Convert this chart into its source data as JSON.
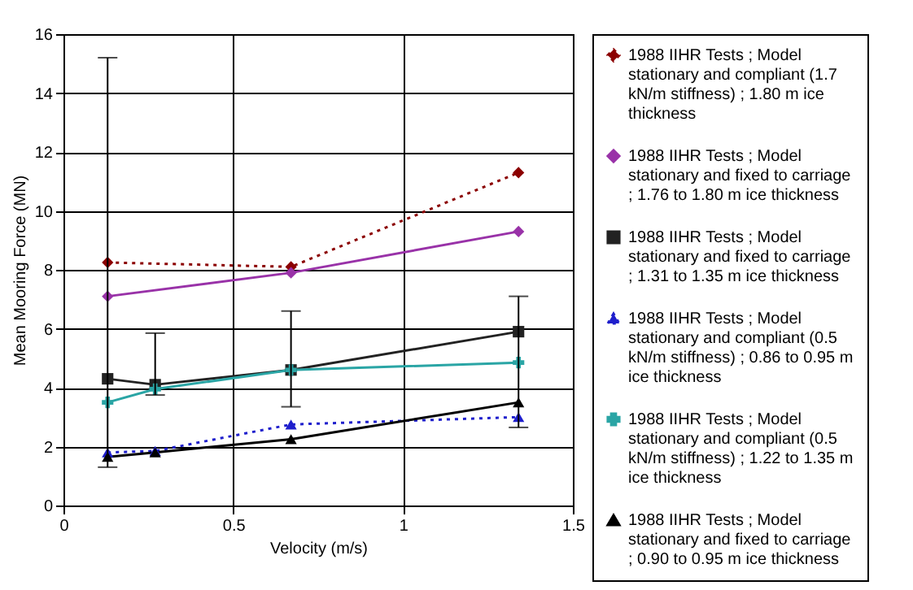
{
  "chart_data": {
    "type": "line",
    "xlabel": "Velocity (m/s)",
    "ylabel": "Mean Mooring Force (MN)",
    "xlim": [
      0,
      1.5
    ],
    "xticks": [
      0,
      0.5,
      1,
      1.5
    ],
    "ylim": [
      0,
      16
    ],
    "yticks": [
      0,
      2,
      4,
      6,
      8,
      10,
      12,
      14,
      16
    ],
    "grid": true,
    "legend": "right",
    "series": [
      {
        "name": "1988 IIHR Tests ; Model stationary and compliant (1.7 kN/m stiffness) ; 1.80 m ice thickness",
        "color": "#8b0000",
        "marker": "diamond",
        "line_style": "dotted",
        "x": [
          0.13,
          0.67,
          1.34
        ],
        "values": [
          8.25,
          8.1,
          11.3
        ],
        "errors": [
          [
            1.3,
            15.2
          ],
          null,
          null
        ]
      },
      {
        "name": "1988 IIHR Tests ; Model stationary and fixed to carriage ; 1.76 to 1.80 m ice thickness",
        "color": "#9932a8",
        "marker": "diamond",
        "line_style": "solid",
        "x": [
          0.13,
          0.67,
          1.34
        ],
        "values": [
          7.1,
          7.9,
          9.3
        ]
      },
      {
        "name": "1988 IIHR Tests ; Model stationary and fixed to carriage ; 1.31 to 1.35 m ice thickness",
        "color": "#222222",
        "marker": "square",
        "line_style": "solid",
        "x": [
          0.13,
          0.27,
          0.67,
          1.34
        ],
        "values": [
          4.3,
          4.1,
          4.6,
          5.9
        ],
        "errors": [
          null,
          [
            3.75,
            5.85
          ],
          [
            3.35,
            6.6
          ],
          [
            2.65,
            7.1
          ]
        ]
      },
      {
        "name": "1988 IIHR Tests ; Model stationary and compliant (0.5 kN/m stiffness) ; 0.86 to 0.95 m ice thickness",
        "color": "#1f1fcc",
        "marker": "triangle",
        "line_style": "dotted",
        "x": [
          0.13,
          0.27,
          0.67,
          1.34
        ],
        "values": [
          1.8,
          1.85,
          2.75,
          3.0
        ]
      },
      {
        "name": "1988 IIHR Tests ; Model stationary and compliant (0.5 kN/m stiffness) ; 1.22 to 1.35 m ice thickness",
        "color": "#2aa5a5",
        "marker": "cross",
        "line_style": "solid",
        "x": [
          0.13,
          0.27,
          0.67,
          1.34
        ],
        "values": [
          3.5,
          3.95,
          4.6,
          4.85
        ]
      },
      {
        "name": "1988 IIHR Tests ; Model stationary and fixed to carriage ; 0.90 to 0.95 m ice thickness",
        "color": "#000000",
        "marker": "triangle",
        "line_style": "solid",
        "x": [
          0.13,
          0.27,
          0.67,
          1.34
        ],
        "values": [
          1.65,
          1.8,
          2.25,
          3.5
        ]
      }
    ]
  }
}
